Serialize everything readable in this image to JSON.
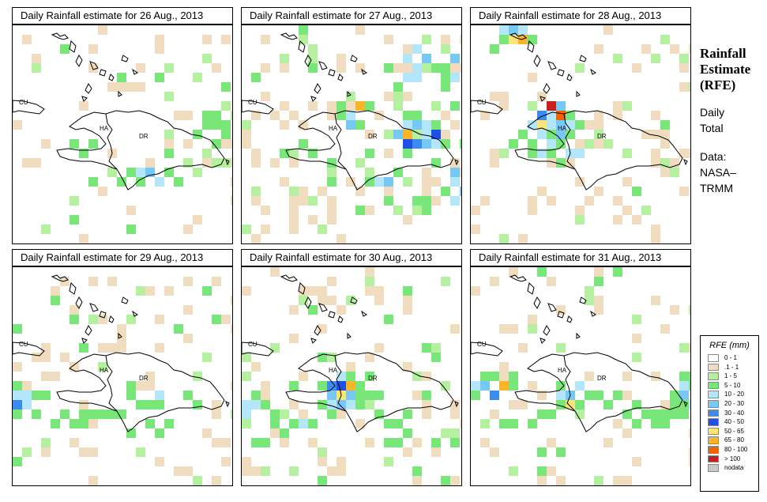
{
  "panels": [
    {
      "title": "Daily Rainfall estimate for  26 Aug., 2013",
      "date": "26 Aug., 2013"
    },
    {
      "title": "Daily Rainfall estimate for  27 Aug., 2013",
      "date": "27 Aug., 2013"
    },
    {
      "title": "Daily Rainfall estimate for  28 Aug., 2013",
      "date": "28 Aug., 2013"
    },
    {
      "title": "Daily Rainfall estimate for  29 Aug., 2013",
      "date": "29 Aug., 2013"
    },
    {
      "title": "Daily Rainfall estimate for 30 Aug., 2013",
      "date": "30 Aug., 2013"
    },
    {
      "title": "Daily Rainfall estimate for  31 Aug., 2013",
      "date": "31 Aug., 2013"
    }
  ],
  "map_labels": {
    "cu": "CU",
    "ha": "HA",
    "dr": "DR"
  },
  "side": {
    "title_line1": "Rainfall",
    "title_line2": "Estimate",
    "title_line3": "(RFE)",
    "subtitle_line1": "Daily",
    "subtitle_line2": "Total",
    "data_line1": "Data:",
    "data_line2": "NASA–",
    "data_line3": "TRMM"
  },
  "legend": {
    "title": "RFE (mm)",
    "items": [
      {
        "label": "0 - 1",
        "color": "#ffffff"
      },
      {
        "label": ".1 - 1",
        "color": "#f0dcbe"
      },
      {
        "label": "1 - 5",
        "color": "#b4f0a0"
      },
      {
        "label": "5 - 10",
        "color": "#78e678"
      },
      {
        "label": "10 - 20",
        "color": "#b4e6fa"
      },
      {
        "label": "20 - 30",
        "color": "#78c8f5"
      },
      {
        "label": "30 - 40",
        "color": "#3c8cf0"
      },
      {
        "label": "40 - 50",
        "color": "#1e50e6"
      },
      {
        "label": "50 - 65",
        "color": "#fae678"
      },
      {
        "label": "65 - 80",
        "color": "#fab428"
      },
      {
        "label": "80 - 100",
        "color": "#f06400"
      },
      {
        "label": "> 100",
        "color": "#c81e1e"
      },
      {
        "label": "nodata",
        "color": "#c8c8c8"
      }
    ]
  }
}
